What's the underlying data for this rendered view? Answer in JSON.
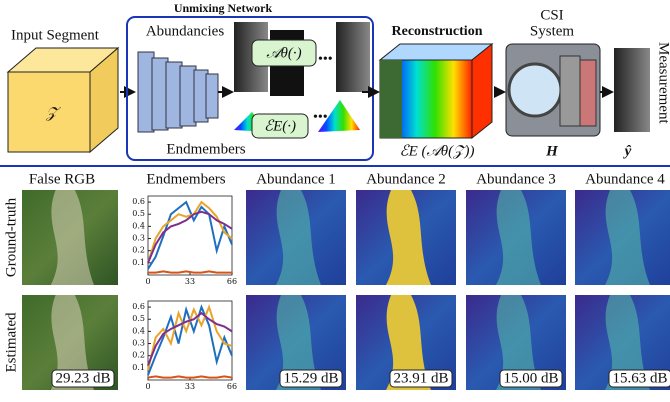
{
  "diagram": {
    "input_label": "Input Segment",
    "input_symbol": "𝒵",
    "network_title": "Unmixing Network",
    "abundancies_label": "Abundancies",
    "abundance_op": "𝒜θ(·)",
    "endmember_op": "ℰE(·)",
    "endmembers_label": "Endmembers",
    "reconstruction_label": "Reconstruction",
    "reconstruction_formula": "ℰE (𝒜θ(𝒵))",
    "csi_line1": "CSI",
    "csi_line2": "System",
    "csi_symbol": "H",
    "measurement_label": "Measurement",
    "measurement_symbol": "ŷ"
  },
  "results": {
    "columns": [
      "False RGB",
      "Endmembers",
      "Abundance 1",
      "Abundance 2",
      "Abundance 3",
      "Abundance 4"
    ],
    "rows": [
      "Ground-truth",
      "Estimated"
    ],
    "estimated_scores": [
      "29.23 dB",
      "15.29 dB",
      "23.91 dB",
      "15.00 dB",
      "15.63 dB"
    ],
    "endmember_plots": [
      {
        "type": "line",
        "x": [
          0,
          6,
          12,
          18,
          24,
          30,
          36,
          42,
          48,
          54,
          60,
          66
        ],
        "xlim": [
          0,
          66
        ],
        "xticks": [
          0,
          33,
          66
        ],
        "ylim": [
          0,
          0.65
        ],
        "yticks": [
          0.1,
          0.2,
          0.3,
          0.4,
          0.5,
          0.6
        ],
        "series": [
          {
            "color": "#1f6fc0",
            "values": [
              0.05,
              0.15,
              0.32,
              0.5,
              0.55,
              0.6,
              0.45,
              0.56,
              0.5,
              0.2,
              0.4,
              0.25
            ]
          },
          {
            "color": "#e8a52a",
            "values": [
              0.1,
              0.3,
              0.4,
              0.45,
              0.5,
              0.48,
              0.5,
              0.6,
              0.55,
              0.48,
              0.35,
              0.3
            ]
          },
          {
            "color": "#7e2f8e",
            "values": [
              0.1,
              0.25,
              0.35,
              0.4,
              0.42,
              0.45,
              0.5,
              0.52,
              0.5,
              0.45,
              0.42,
              0.38
            ]
          },
          {
            "color": "#d95319",
            "values": [
              0.02,
              0.02,
              0.03,
              0.02,
              0.02,
              0.03,
              0.02,
              0.02,
              0.03,
              0.02,
              0.02,
              0.02
            ]
          }
        ]
      },
      {
        "type": "line",
        "x": [
          0,
          6,
          12,
          18,
          24,
          30,
          36,
          42,
          48,
          54,
          60,
          66
        ],
        "xlim": [
          0,
          66
        ],
        "xticks": [
          0,
          33,
          66
        ],
        "ylim": [
          0,
          0.65
        ],
        "yticks": [
          0.1,
          0.2,
          0.3,
          0.4,
          0.5,
          0.6
        ],
        "series": [
          {
            "color": "#1f6fc0",
            "values": [
              0.04,
              0.2,
              0.35,
              0.52,
              0.3,
              0.58,
              0.4,
              0.6,
              0.45,
              0.15,
              0.35,
              0.2
            ]
          },
          {
            "color": "#e8a52a",
            "values": [
              0.08,
              0.35,
              0.42,
              0.3,
              0.55,
              0.4,
              0.58,
              0.45,
              0.6,
              0.4,
              0.3,
              0.28
            ]
          },
          {
            "color": "#7e2f8e",
            "values": [
              0.12,
              0.28,
              0.38,
              0.42,
              0.45,
              0.48,
              0.5,
              0.55,
              0.5,
              0.46,
              0.44,
              0.4
            ]
          },
          {
            "color": "#d95319",
            "values": [
              0.02,
              0.03,
              0.02,
              0.02,
              0.03,
              0.02,
              0.02,
              0.03,
              0.02,
              0.02,
              0.03,
              0.02
            ]
          }
        ]
      }
    ]
  }
}
